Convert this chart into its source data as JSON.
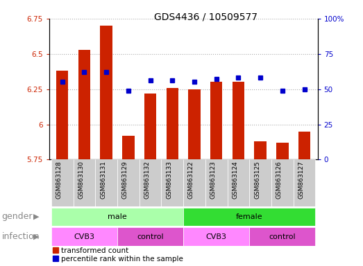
{
  "title": "GDS4436 / 10509577",
  "samples": [
    "GSM863128",
    "GSM863130",
    "GSM863131",
    "GSM863129",
    "GSM863132",
    "GSM863133",
    "GSM863122",
    "GSM863123",
    "GSM863124",
    "GSM863125",
    "GSM863126",
    "GSM863127"
  ],
  "transformed_count": [
    6.38,
    6.53,
    6.7,
    5.92,
    6.22,
    6.26,
    6.25,
    6.3,
    6.3,
    5.88,
    5.87,
    5.95
  ],
  "percentile_rank": [
    55,
    62,
    62,
    49,
    56,
    56,
    55,
    57,
    58,
    58,
    49,
    50
  ],
  "ylim_left": [
    5.75,
    6.75
  ],
  "ylim_right": [
    0,
    100
  ],
  "yticks_left": [
    5.75,
    6.0,
    6.25,
    6.5,
    6.75
  ],
  "ytick_labels_left": [
    "5.75",
    "6",
    "6.25",
    "6.5",
    "6.75"
  ],
  "yticks_right": [
    0,
    25,
    50,
    75,
    100
  ],
  "ytick_labels_right": [
    "0",
    "25",
    "50",
    "75",
    "100%"
  ],
  "bar_color": "#cc2200",
  "dot_color": "#0000cc",
  "grid_color": "#aaaaaa",
  "bar_width": 0.55,
  "gender_groups": [
    {
      "label": "male",
      "start": 0,
      "end": 6,
      "color": "#aaffaa"
    },
    {
      "label": "female",
      "start": 6,
      "end": 12,
      "color": "#33dd33"
    }
  ],
  "infection_groups": [
    {
      "label": "CVB3",
      "start": 0,
      "end": 3,
      "color": "#ff88ff"
    },
    {
      "label": "control",
      "start": 3,
      "end": 6,
      "color": "#dd55cc"
    },
    {
      "label": "CVB3",
      "start": 6,
      "end": 9,
      "color": "#ff88ff"
    },
    {
      "label": "control",
      "start": 9,
      "end": 12,
      "color": "#dd55cc"
    }
  ],
  "legend_items": [
    {
      "label": "transformed count",
      "color": "#cc2200"
    },
    {
      "label": "percentile rank within the sample",
      "color": "#0000cc"
    }
  ],
  "title_fontsize": 10,
  "tick_fontsize": 7.5,
  "bar_label_fontsize": 8,
  "row_label_fontsize": 9,
  "annotation_label_color": "#888888",
  "xtick_bg_color": "#cccccc"
}
